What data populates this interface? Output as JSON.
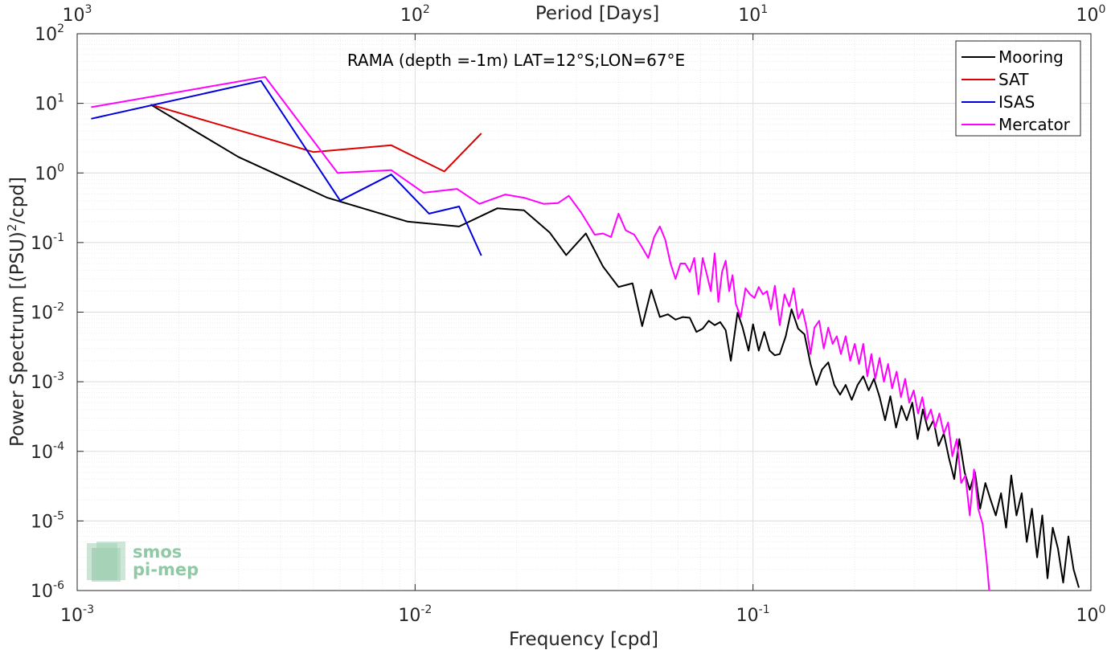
{
  "chart_data": {
    "type": "line",
    "title": "RAMA (depth =-1m) LAT=12°S;LON=67°E",
    "xlabel": "Frequency [cpd]",
    "ylabel": "Power Spectrum [(PSU)²/cpd]",
    "top_xlabel": "Period [Days]",
    "xscale": "log",
    "yscale": "log",
    "xlim": [
      0.001,
      1
    ],
    "ylim": [
      1e-06,
      100
    ],
    "grid": true,
    "legend_position": "top-right",
    "x_ticks": [
      {
        "value": 0.001,
        "base": "10",
        "exp": "-3"
      },
      {
        "value": 0.01,
        "base": "10",
        "exp": "-2"
      },
      {
        "value": 0.1,
        "base": "10",
        "exp": "-1"
      },
      {
        "value": 1,
        "base": "10",
        "exp": "0"
      }
    ],
    "y_ticks": [
      {
        "value": 1e-06,
        "base": "10",
        "exp": "-6"
      },
      {
        "value": 1e-05,
        "base": "10",
        "exp": "-5"
      },
      {
        "value": 0.0001,
        "base": "10",
        "exp": "-4"
      },
      {
        "value": 0.001,
        "base": "10",
        "exp": "-3"
      },
      {
        "value": 0.01,
        "base": "10",
        "exp": "-2"
      },
      {
        "value": 0.1,
        "base": "10",
        "exp": "-1"
      },
      {
        "value": 1,
        "base": "10",
        "exp": "0"
      },
      {
        "value": 10,
        "base": "10",
        "exp": "1"
      },
      {
        "value": 100,
        "base": "10",
        "exp": "2"
      }
    ],
    "top_ticks": [
      {
        "period": 1000,
        "base": "10",
        "exp": "3"
      },
      {
        "period": 100,
        "base": "10",
        "exp": "2"
      },
      {
        "period": 10,
        "base": "10",
        "exp": "1"
      },
      {
        "period": 1,
        "base": "10",
        "exp": "0"
      }
    ],
    "series": [
      {
        "name": "Mooring",
        "color": "#000000",
        "points": [
          [
            0.00165,
            9.6
          ],
          [
            0.003,
            1.7
          ],
          [
            0.0055,
            0.44
          ],
          [
            0.0095,
            0.2
          ],
          [
            0.0135,
            0.17
          ],
          [
            0.0175,
            0.31
          ],
          [
            0.021,
            0.29
          ],
          [
            0.025,
            0.14
          ],
          [
            0.028,
            0.066
          ],
          [
            0.032,
            0.135
          ],
          [
            0.036,
            0.045
          ],
          [
            0.04,
            0.023
          ],
          [
            0.044,
            0.026
          ],
          [
            0.047,
            0.0063
          ],
          [
            0.05,
            0.021
          ],
          [
            0.053,
            0.0085
          ],
          [
            0.056,
            0.0093
          ],
          [
            0.059,
            0.0078
          ],
          [
            0.062,
            0.0085
          ],
          [
            0.065,
            0.0083
          ],
          [
            0.068,
            0.0052
          ],
          [
            0.071,
            0.0058
          ],
          [
            0.074,
            0.0075
          ],
          [
            0.077,
            0.0065
          ],
          [
            0.08,
            0.0072
          ],
          [
            0.083,
            0.0055
          ],
          [
            0.086,
            0.002
          ],
          [
            0.09,
            0.0098
          ],
          [
            0.093,
            0.0062
          ],
          [
            0.097,
            0.0028
          ],
          [
            0.1,
            0.0067
          ],
          [
            0.104,
            0.0028
          ],
          [
            0.108,
            0.0052
          ],
          [
            0.112,
            0.0028
          ],
          [
            0.116,
            0.0024
          ],
          [
            0.12,
            0.0025
          ],
          [
            0.125,
            0.0045
          ],
          [
            0.13,
            0.011
          ],
          [
            0.136,
            0.0058
          ],
          [
            0.142,
            0.0048
          ],
          [
            0.148,
            0.0018
          ],
          [
            0.154,
            0.0009
          ],
          [
            0.16,
            0.0015
          ],
          [
            0.167,
            0.0019
          ],
          [
            0.174,
            0.0009
          ],
          [
            0.181,
            0.00065
          ],
          [
            0.188,
            0.0009
          ],
          [
            0.196,
            0.00055
          ],
          [
            0.204,
            0.0009
          ],
          [
            0.212,
            0.0012
          ],
          [
            0.22,
            0.00075
          ],
          [
            0.228,
            0.0011
          ],
          [
            0.237,
            0.0006
          ],
          [
            0.246,
            0.00028
          ],
          [
            0.255,
            0.00062
          ],
          [
            0.265,
            0.00022
          ],
          [
            0.275,
            0.00045
          ],
          [
            0.285,
            0.00028
          ],
          [
            0.296,
            0.0005
          ],
          [
            0.307,
            0.00015
          ],
          [
            0.318,
            0.0004
          ],
          [
            0.33,
            0.0002
          ],
          [
            0.342,
            0.00028
          ],
          [
            0.354,
            0.00012
          ],
          [
            0.367,
            0.00018
          ],
          [
            0.38,
            8e-05
          ],
          [
            0.394,
            4e-05
          ],
          [
            0.408,
            0.00015
          ],
          [
            0.423,
            5e-05
          ],
          [
            0.438,
            2.8e-05
          ],
          [
            0.454,
            5e-05
          ],
          [
            0.47,
            1.5e-05
          ],
          [
            0.487,
            3.5e-05
          ],
          [
            0.505,
            2e-05
          ],
          [
            0.523,
            1.2e-05
          ],
          [
            0.542,
            2.5e-05
          ],
          [
            0.561,
            8e-06
          ],
          [
            0.581,
            4.5e-05
          ],
          [
            0.602,
            1.2e-05
          ],
          [
            0.624,
            2.5e-05
          ],
          [
            0.646,
            5e-06
          ],
          [
            0.669,
            1.5e-05
          ],
          [
            0.693,
            3e-06
          ],
          [
            0.718,
            1.2e-05
          ],
          [
            0.744,
            1.5e-06
          ],
          [
            0.771,
            8e-06
          ],
          [
            0.799,
            4e-06
          ],
          [
            0.828,
            1.3e-06
          ],
          [
            0.858,
            6e-06
          ],
          [
            0.889,
            2e-06
          ],
          [
            0.921,
            1.1e-06
          ]
        ]
      },
      {
        "name": "SAT",
        "color": "#dd0000",
        "points": [
          [
            0.00165,
            9.6
          ],
          [
            0.005,
            2.0
          ],
          [
            0.0085,
            2.5
          ],
          [
            0.0122,
            1.05
          ],
          [
            0.0157,
            3.7
          ]
        ]
      },
      {
        "name": "ISAS",
        "color": "#0000dd",
        "points": [
          [
            0.0011,
            6.0
          ],
          [
            0.0035,
            21.0
          ],
          [
            0.006,
            0.4
          ],
          [
            0.0085,
            0.95
          ],
          [
            0.011,
            0.26
          ],
          [
            0.0135,
            0.33
          ],
          [
            0.0157,
            0.065
          ]
        ]
      },
      {
        "name": "Mercator",
        "color": "#ff00ff",
        "points": [
          [
            0.0011,
            8.8
          ],
          [
            0.0036,
            24.0
          ],
          [
            0.0059,
            1.0
          ],
          [
            0.0085,
            1.1
          ],
          [
            0.0106,
            0.52
          ],
          [
            0.0133,
            0.59
          ],
          [
            0.0155,
            0.36
          ],
          [
            0.0185,
            0.49
          ],
          [
            0.021,
            0.44
          ],
          [
            0.024,
            0.36
          ],
          [
            0.0265,
            0.37
          ],
          [
            0.0285,
            0.47
          ],
          [
            0.031,
            0.27
          ],
          [
            0.034,
            0.13
          ],
          [
            0.036,
            0.135
          ],
          [
            0.038,
            0.12
          ],
          [
            0.04,
            0.26
          ],
          [
            0.042,
            0.15
          ],
          [
            0.0445,
            0.13
          ],
          [
            0.047,
            0.085
          ],
          [
            0.049,
            0.06
          ],
          [
            0.051,
            0.12
          ],
          [
            0.053,
            0.17
          ],
          [
            0.055,
            0.11
          ],
          [
            0.057,
            0.05
          ],
          [
            0.059,
            0.03
          ],
          [
            0.061,
            0.05
          ],
          [
            0.063,
            0.05
          ],
          [
            0.065,
            0.038
          ],
          [
            0.067,
            0.06
          ],
          [
            0.069,
            0.018
          ],
          [
            0.071,
            0.06
          ],
          [
            0.073,
            0.035
          ],
          [
            0.075,
            0.02
          ],
          [
            0.077,
            0.07
          ],
          [
            0.079,
            0.014
          ],
          [
            0.081,
            0.038
          ],
          [
            0.083,
            0.055
          ],
          [
            0.085,
            0.02
          ],
          [
            0.087,
            0.034
          ],
          [
            0.089,
            0.013
          ],
          [
            0.092,
            0.0085
          ],
          [
            0.095,
            0.022
          ],
          [
            0.098,
            0.018
          ],
          [
            0.101,
            0.016
          ],
          [
            0.104,
            0.023
          ],
          [
            0.107,
            0.018
          ],
          [
            0.11,
            0.02
          ],
          [
            0.113,
            0.011
          ],
          [
            0.116,
            0.024
          ],
          [
            0.12,
            0.0065
          ],
          [
            0.124,
            0.018
          ],
          [
            0.128,
            0.012
          ],
          [
            0.132,
            0.022
          ],
          [
            0.136,
            0.008
          ],
          [
            0.14,
            0.011
          ],
          [
            0.144,
            0.006
          ],
          [
            0.148,
            0.0025
          ],
          [
            0.152,
            0.006
          ],
          [
            0.157,
            0.0075
          ],
          [
            0.162,
            0.003
          ],
          [
            0.167,
            0.006
          ],
          [
            0.172,
            0.0035
          ],
          [
            0.177,
            0.0045
          ],
          [
            0.182,
            0.0025
          ],
          [
            0.188,
            0.0045
          ],
          [
            0.194,
            0.002
          ],
          [
            0.2,
            0.0035
          ],
          [
            0.206,
            0.0018
          ],
          [
            0.212,
            0.0035
          ],
          [
            0.218,
            0.0012
          ],
          [
            0.224,
            0.0025
          ],
          [
            0.23,
            0.0011
          ],
          [
            0.237,
            0.0022
          ],
          [
            0.244,
            0.001
          ],
          [
            0.251,
            0.0018
          ],
          [
            0.258,
            0.0008
          ],
          [
            0.266,
            0.0014
          ],
          [
            0.274,
            0.0006
          ],
          [
            0.282,
            0.0011
          ],
          [
            0.29,
            0.0005
          ],
          [
            0.299,
            0.00075
          ],
          [
            0.308,
            0.00035
          ],
          [
            0.317,
            0.0006
          ],
          [
            0.326,
            0.00028
          ],
          [
            0.336,
            0.0004
          ],
          [
            0.346,
            0.00022
          ],
          [
            0.356,
            0.00035
          ],
          [
            0.367,
            0.00018
          ],
          [
            0.378,
            0.00026
          ],
          [
            0.389,
            8.5e-05
          ],
          [
            0.401,
            0.00015
          ],
          [
            0.413,
            3.5e-05
          ],
          [
            0.425,
            4.5e-05
          ],
          [
            0.438,
            1.2e-05
          ],
          [
            0.451,
            5.5e-05
          ],
          [
            0.464,
            1.5e-05
          ],
          [
            0.478,
            9e-06
          ],
          [
            0.492,
            2.5e-06
          ],
          [
            0.5,
            1e-06
          ]
        ]
      }
    ]
  },
  "logo": {
    "line1": "smos",
    "line2": "pi-mep"
  }
}
